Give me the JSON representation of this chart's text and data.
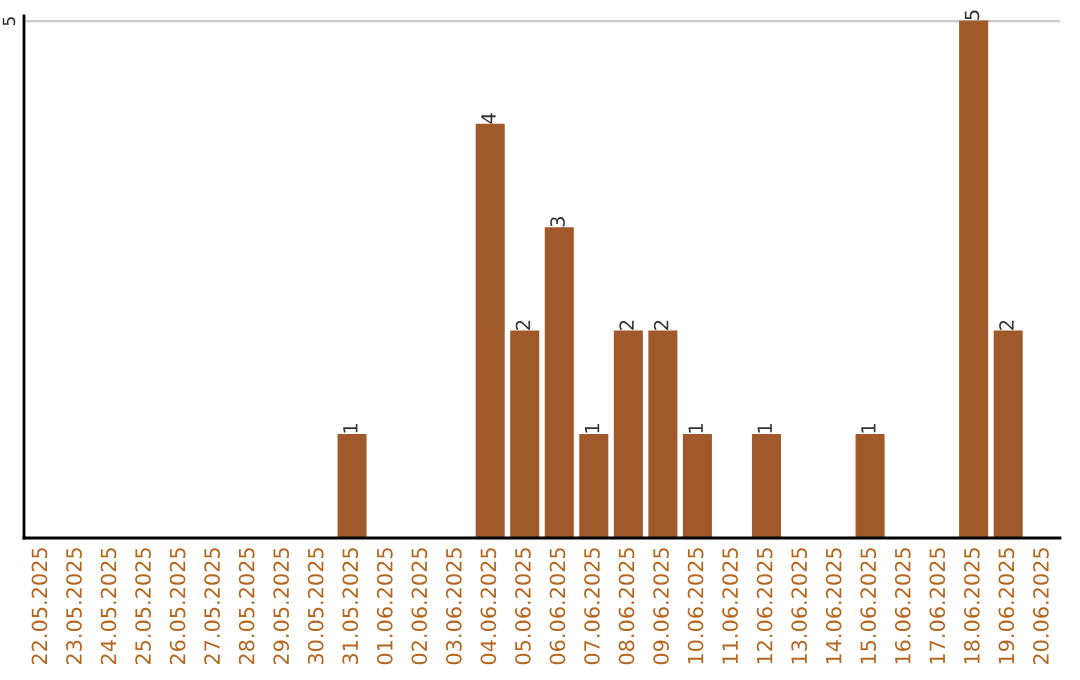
{
  "chart_data": {
    "type": "bar",
    "categories": [
      "22.05.2025",
      "23.05.2025",
      "24.05.2025",
      "25.05.2025",
      "26.05.2025",
      "27.05.2025",
      "28.05.2025",
      "29.05.2025",
      "30.05.2025",
      "31.05.2025",
      "01.06.2025",
      "02.06.2025",
      "03.06.2025",
      "04.06.2025",
      "05.06.2025",
      "06.06.2025",
      "07.06.2025",
      "08.06.2025",
      "09.06.2025",
      "10.06.2025",
      "11.06.2025",
      "12.06.2025",
      "13.06.2025",
      "14.06.2025",
      "15.06.2025",
      "16.06.2025",
      "17.06.2025",
      "18.06.2025",
      "19.06.2025",
      "20.06.2025"
    ],
    "values": [
      0,
      0,
      0,
      0,
      0,
      0,
      0,
      0,
      0,
      1,
      0,
      0,
      0,
      4,
      2,
      3,
      1,
      2,
      2,
      1,
      0,
      1,
      0,
      0,
      1,
      0,
      0,
      5,
      2,
      0
    ],
    "value_labels": [
      null,
      null,
      null,
      null,
      null,
      null,
      null,
      null,
      null,
      "1",
      null,
      null,
      null,
      "4",
      "2",
      "3",
      "1",
      "2",
      "2",
      "1",
      null,
      "1",
      null,
      null,
      "1",
      null,
      null,
      "5",
      "2",
      null
    ],
    "color": "#a0592b",
    "ylim": [
      0,
      5.05
    ],
    "yticks": [
      5
    ],
    "grid": "y"
  }
}
